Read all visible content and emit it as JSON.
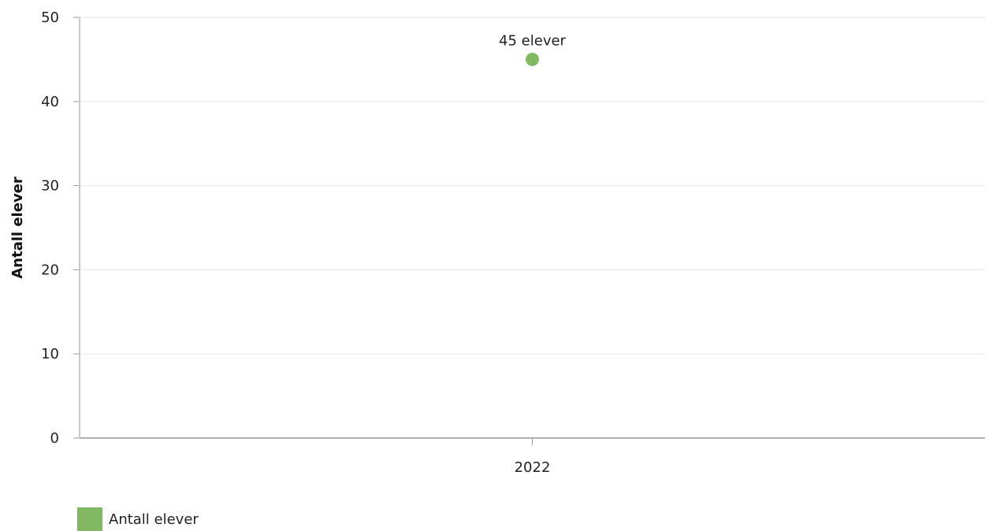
{
  "chart_data": {
    "type": "scatter",
    "ylabel": "Antall elever",
    "xlabel": "",
    "categories": [
      "2022"
    ],
    "ylim": [
      0,
      50
    ],
    "yticks": [
      0,
      10,
      20,
      30,
      40,
      50
    ],
    "grid": true,
    "legend_position": "bottom-left",
    "series": [
      {
        "name": "Antall elever",
        "color": "#82b864",
        "values": [
          45
        ],
        "data_labels": [
          "45 elever"
        ]
      }
    ]
  }
}
